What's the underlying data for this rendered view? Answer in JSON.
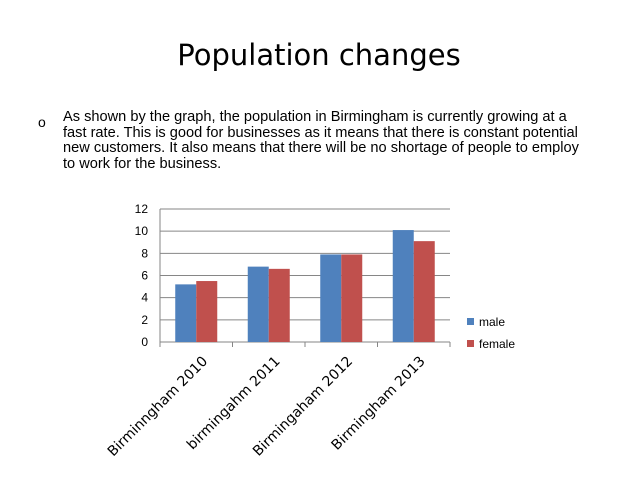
{
  "slide": {
    "title": "Population changes",
    "bullet_marker": "o",
    "bullet_text": "As shown by the graph, the population in Birmingham is currently growing at a fast rate. This is good for businesses as it means that there is constant potential new customers. It also means that there will be no shortage of people to employ to work for the business."
  },
  "chart_data": {
    "type": "bar",
    "categories": [
      "Birminngham 2010",
      "birmingahm 2011",
      "Birmingaham 2012",
      "Birmingham 2013"
    ],
    "series": [
      {
        "name": "male",
        "values": [
          5.2,
          6.8,
          7.9,
          10.1
        ],
        "color": "#4F81BD"
      },
      {
        "name": "female",
        "values": [
          5.5,
          6.6,
          7.9,
          9.1
        ],
        "color": "#C0504D"
      }
    ],
    "ylim": [
      0,
      12
    ],
    "yticks": [
      0,
      2,
      4,
      6,
      8,
      10,
      12
    ],
    "grid": true,
    "legend": "right",
    "gridline_color": "#868686"
  }
}
